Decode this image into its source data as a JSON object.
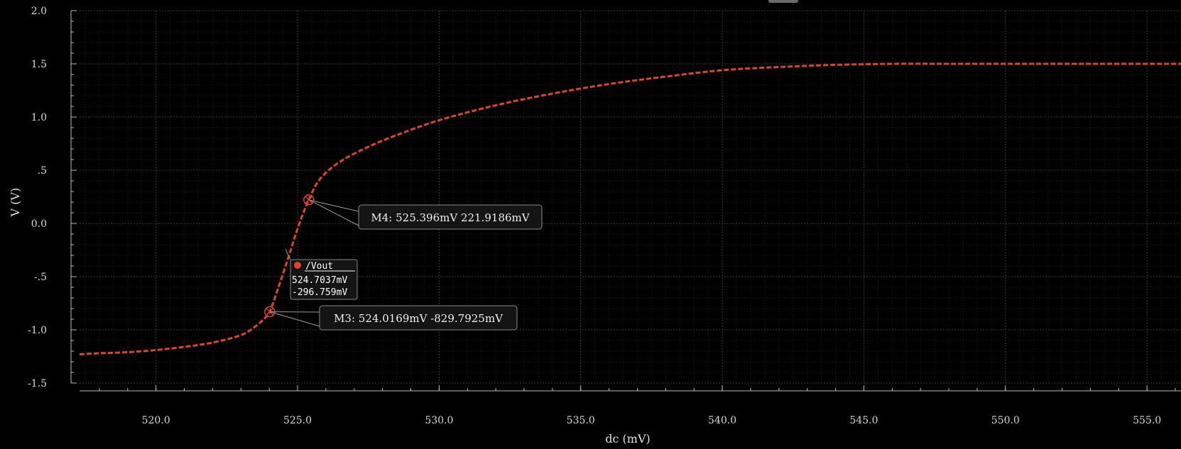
{
  "colors": {
    "background": "#000000",
    "trace": "#d9472b",
    "grid_major": "#3a3a3a",
    "grid_minor": "#1e1e1e",
    "axis": "#bdbdbd",
    "box_fill": "#141414",
    "box_stroke": "#8a8a8a"
  },
  "chart_data": {
    "type": "line",
    "xlabel": "dc (mV)",
    "ylabel": "V (V)",
    "xlim": [
      517.3,
      556.2
    ],
    "ylim": [
      -1.5,
      2.0
    ],
    "x_ticks": [
      520.0,
      525.0,
      530.0,
      535.0,
      540.0,
      545.0,
      550.0,
      555.0
    ],
    "x_tick_labels": [
      "520.0",
      "525.0",
      "530.0",
      "535.0",
      "540.0",
      "545.0",
      "550.0",
      "555.0"
    ],
    "y_ticks": [
      2.0,
      1.5,
      1.0,
      0.5,
      0.0,
      -0.5,
      -1.0,
      -1.5
    ],
    "y_tick_labels": [
      "2.0",
      "1.5",
      "1.0",
      ".5",
      "0.0",
      "-.5",
      "-1.0",
      "-1.5"
    ],
    "grid": true,
    "series": [
      {
        "name": "/Vout",
        "x": [
          517.3,
          518,
          519,
          520,
          521,
          522,
          523,
          523.5,
          523.8,
          524.0169,
          524.3,
          524.7037,
          525.0,
          525.396,
          525.8,
          526.5,
          527.5,
          528.5,
          530,
          532,
          534,
          536,
          538,
          540,
          542,
          544,
          546,
          548,
          550,
          552,
          554,
          556.2
        ],
        "y": [
          -1.23,
          -1.22,
          -1.21,
          -1.19,
          -1.16,
          -1.12,
          -1.05,
          -0.97,
          -0.9,
          -0.8298,
          -0.62,
          -0.2968,
          -0.05,
          0.2219,
          0.42,
          0.58,
          0.72,
          0.83,
          0.97,
          1.11,
          1.22,
          1.31,
          1.38,
          1.44,
          1.47,
          1.49,
          1.5,
          1.5,
          1.5,
          1.5,
          1.5,
          1.5
        ]
      }
    ],
    "markers": [
      {
        "id": "M4",
        "x": 525.396,
        "y": 0.2219186,
        "label": "M4: 525.396mV 221.9186mV"
      },
      {
        "id": "M3",
        "x": 524.0169,
        "y": -0.8297925,
        "label": "M3: 524.0169mV -829.7925mV"
      }
    ],
    "tooltip": {
      "name": "/Vout",
      "x_value": "524.7037mV",
      "y_value": "-296.759mV",
      "x": 524.7037,
      "y": -0.296759
    }
  }
}
